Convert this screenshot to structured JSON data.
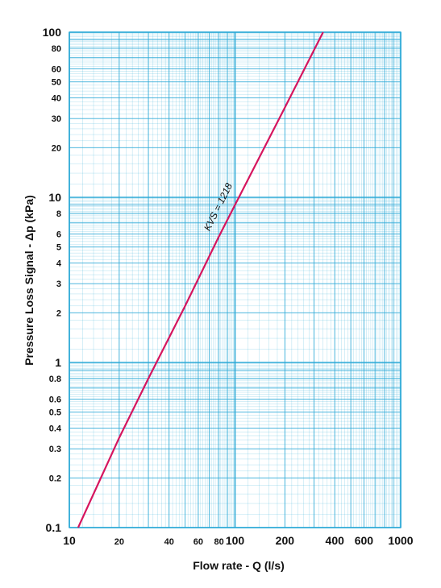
{
  "chart_data": {
    "type": "line",
    "title": "",
    "xlabel": "Flow rate - Q (l/s)",
    "ylabel": "Pressure Loss Signal  - Δp (kPa)",
    "xscale": "log",
    "yscale": "log",
    "xlim": [
      10,
      1000
    ],
    "ylim": [
      0.1,
      100
    ],
    "grid": true,
    "x_ticks": [
      {
        "value": 10,
        "label": "10",
        "major": true
      },
      {
        "value": 20,
        "label": "20",
        "major": false
      },
      {
        "value": 40,
        "label": "40",
        "major": false
      },
      {
        "value": 60,
        "label": "60",
        "major": false
      },
      {
        "value": 80,
        "label": "80",
        "major": false
      },
      {
        "value": 100,
        "label": "100",
        "major": true
      },
      {
        "value": 200,
        "label": "200",
        "major": true
      },
      {
        "value": 400,
        "label": "400",
        "major": true
      },
      {
        "value": 600,
        "label": "600",
        "major": true
      },
      {
        "value": 1000,
        "label": "1000",
        "major": true
      }
    ],
    "y_ticks": [
      {
        "value": 0.1,
        "label": "0.1",
        "major": true
      },
      {
        "value": 0.2,
        "label": "0.2",
        "major": false
      },
      {
        "value": 0.3,
        "label": "0.3",
        "major": false
      },
      {
        "value": 0.4,
        "label": "0.4",
        "major": false
      },
      {
        "value": 0.5,
        "label": "0.5",
        "major": false
      },
      {
        "value": 0.6,
        "label": "0.6",
        "major": false
      },
      {
        "value": 0.8,
        "label": "0.8",
        "major": false
      },
      {
        "value": 1,
        "label": "1",
        "major": true
      },
      {
        "value": 2,
        "label": "2",
        "major": false
      },
      {
        "value": 3,
        "label": "3",
        "major": false
      },
      {
        "value": 4,
        "label": "4",
        "major": false
      },
      {
        "value": 5,
        "label": "5",
        "major": false
      },
      {
        "value": 6,
        "label": "6",
        "major": false
      },
      {
        "value": 8,
        "label": "8",
        "major": false
      },
      {
        "value": 10,
        "label": "10",
        "major": true
      },
      {
        "value": 20,
        "label": "20",
        "major": false
      },
      {
        "value": 30,
        "label": "30",
        "major": false
      },
      {
        "value": 40,
        "label": "40",
        "major": false
      },
      {
        "value": 50,
        "label": "50",
        "major": false
      },
      {
        "value": 60,
        "label": "60",
        "major": false
      },
      {
        "value": 80,
        "label": "80",
        "major": false
      },
      {
        "value": 100,
        "label": "100",
        "major": true
      }
    ],
    "series": [
      {
        "name": "KVS = 1218",
        "color": "#d6155e",
        "x": [
          11.3,
          20,
          30,
          50,
          80,
          100,
          200,
          340
        ],
        "y": [
          0.1,
          0.35,
          0.8,
          2.2,
          5.8,
          9,
          35,
          100
        ]
      }
    ],
    "annotations": [
      {
        "text": "KVS = 1218",
        "x": 88,
        "y": 8.2
      }
    ],
    "colors": {
      "grid": "#29a8d6",
      "line": "#d6155e",
      "text": "#111111"
    }
  }
}
